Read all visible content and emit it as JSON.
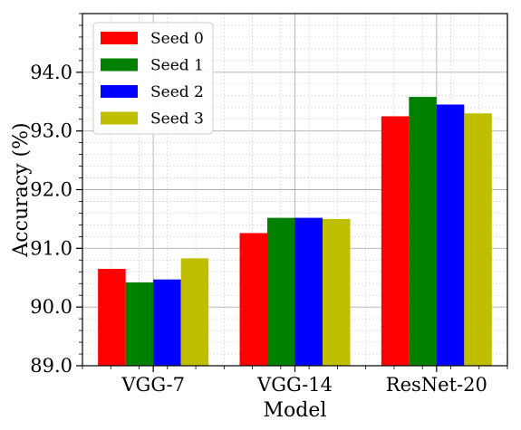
{
  "chart_data": {
    "type": "bar",
    "categories": [
      "VGG-7",
      "VGG-14",
      "ResNet-20"
    ],
    "series": [
      {
        "name": "Seed 0",
        "color": "#ff0000",
        "values": [
          90.65,
          91.26,
          93.25
        ]
      },
      {
        "name": "Seed 1",
        "color": "#008000",
        "values": [
          90.42,
          91.52,
          93.58
        ]
      },
      {
        "name": "Seed 2",
        "color": "#0000ff",
        "values": [
          90.47,
          91.52,
          93.45
        ]
      },
      {
        "name": "Seed 3",
        "color": "#bfbf00",
        "values": [
          90.83,
          91.5,
          93.3
        ]
      }
    ],
    "xlabel": "Model",
    "ylabel": "Accuracy (%)",
    "ylim": [
      89.0,
      95.0
    ],
    "yticks": [
      "89.0",
      "90.0",
      "91.0",
      "92.0",
      "93.0",
      "94.0"
    ],
    "ytick_values": [
      89.0,
      90.0,
      91.0,
      92.0,
      93.0,
      94.0
    ],
    "grid": "major and minor",
    "legend_position": "top-left"
  }
}
